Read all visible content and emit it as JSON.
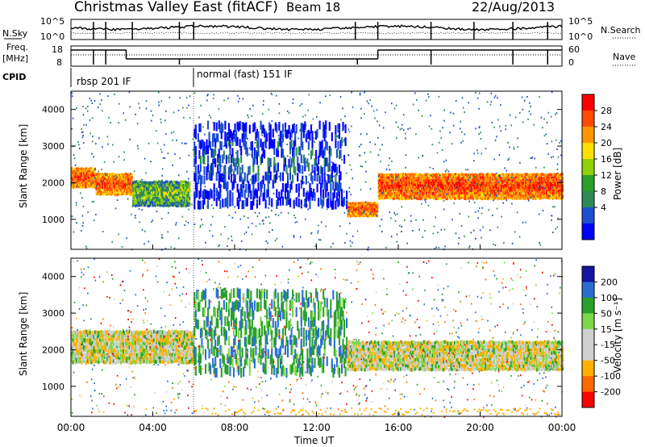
{
  "header": {
    "station": "Christmas Valley East (fitACF)",
    "beam": "Beam 18",
    "date": "22/Aug/2013"
  },
  "noise_panel": {
    "left_label": "N.Sky",
    "left_ticks": [
      "10^5",
      "10^0"
    ],
    "right_ticks": [
      "10^5",
      "10^0"
    ],
    "right_label": "N.Search"
  },
  "freq_panel": {
    "left_label_line1": "Freq.",
    "left_label_line2": "[MHz]",
    "left_ticks": [
      "18",
      "8"
    ],
    "right_ticks": [
      "60",
      "0"
    ],
    "right_label": "Nave"
  },
  "cpid": {
    "label": "CPID",
    "modes": [
      {
        "text": "rbsp 201 IF",
        "start_hour": 0.0
      },
      {
        "text": "normal (fast) 151 IF",
        "start_hour": 6.0
      }
    ]
  },
  "power_panel": {
    "ylabel": "Slant Range [km]",
    "yticks": [
      "1000",
      "2000",
      "3000",
      "4000"
    ],
    "colorbar_label": "Power [dB]",
    "colorbar_ticks": [
      "28",
      "24",
      "20",
      "16",
      "12",
      "8",
      "4"
    ],
    "colorbar_colors": [
      "#ff0000",
      "#ff4a00",
      "#ff9600",
      "#ffe000",
      "#8fd000",
      "#2aa02a",
      "#2e8b57",
      "#1c4fd0",
      "#0000ff"
    ]
  },
  "velocity_panel": {
    "ylabel": "Slant Range [km]",
    "yticks": [
      "1000",
      "2000",
      "3000",
      "4000"
    ],
    "colorbar_label": "Velocity [m s⁻¹]",
    "colorbar_ticks": [
      "200",
      "100",
      "50",
      "15",
      "-15",
      "-50",
      "-100",
      "-200"
    ],
    "colorbar_colors": [
      "#1414a0",
      "#2a6fd0",
      "#2aa02a",
      "#7ad84a",
      "#cfcfcf",
      "#cfcfcf",
      "#ffb000",
      "#ff6a00",
      "#ff0000"
    ]
  },
  "xaxis": {
    "label": "Time UT",
    "ticks": [
      "00:00",
      "04:00",
      "08:00",
      "12:00",
      "16:00",
      "20:00",
      "00:00"
    ]
  },
  "chart_data": {
    "type": "heatmap",
    "title": "Christmas Valley East (fitACF)",
    "subtitle": "Beam 18",
    "date": "22/Aug/2013",
    "xlabel": "Time UT",
    "xlim_hours": [
      0,
      24
    ],
    "ylabel": "Slant Range [km]",
    "ylim_km": [
      180,
      4500
    ],
    "panels": [
      {
        "name": "Power",
        "unit": "dB",
        "colorbar_range": [
          0,
          30
        ],
        "echo_bands": [
          {
            "t0": 0.0,
            "t1": 1.2,
            "range_km": [
              1900,
              2450
            ],
            "power_db": 26
          },
          {
            "t0": 1.2,
            "t1": 3.0,
            "range_km": [
              1700,
              2300
            ],
            "power_db": 26
          },
          {
            "t0": 3.0,
            "t1": 5.8,
            "range_km": [
              1400,
              2100
            ],
            "power_db": 14
          },
          {
            "t0": 6.0,
            "t1": 13.5,
            "range_km": [
              1500,
              3800
            ],
            "power_db": 6
          },
          {
            "t0": 13.5,
            "t1": 15.0,
            "range_km": [
              1100,
              1500
            ],
            "power_db": 26
          },
          {
            "t0": 15.0,
            "t1": 24.0,
            "range_km": [
              1600,
              2300
            ],
            "power_db": 27
          }
        ]
      },
      {
        "name": "Velocity",
        "unit": "m s^-1",
        "colorbar_range": [
          -250,
          250
        ],
        "echo_bands": [
          {
            "t0": 0.0,
            "t1": 6.0,
            "range_km": [
              1700,
              2600
            ],
            "velocity": 0
          },
          {
            "t0": 6.0,
            "t1": 13.5,
            "range_km": [
              1500,
              3800
            ],
            "velocity": 60
          },
          {
            "t0": 13.5,
            "t1": 24.0,
            "range_km": [
              1500,
              2300
            ],
            "velocity": 0
          }
        ]
      }
    ]
  }
}
